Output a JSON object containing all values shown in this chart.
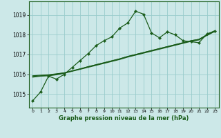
{
  "xlabel": "Graphe pression niveau de la mer (hPa)",
  "bg_color": "#cce8e8",
  "grid_color": "#99cccc",
  "line_color": "#1a5c1a",
  "x_ticks": [
    0,
    1,
    2,
    3,
    4,
    5,
    6,
    7,
    8,
    9,
    10,
    11,
    12,
    13,
    14,
    15,
    16,
    17,
    18,
    19,
    20,
    21,
    22,
    23
  ],
  "ylim": [
    1014.3,
    1019.7
  ],
  "yticks": [
    1015,
    1016,
    1017,
    1018,
    1019
  ],
  "series": {
    "main": [
      1014.65,
      1015.1,
      1015.9,
      1015.75,
      1016.0,
      1016.35,
      1016.7,
      1017.05,
      1017.45,
      1017.7,
      1017.9,
      1018.35,
      1018.6,
      1019.2,
      1019.05,
      1018.1,
      1017.85,
      1018.15,
      1018.0,
      1017.7,
      1017.65,
      1017.6,
      1018.05,
      1018.2
    ],
    "line_a": [
      1015.92,
      1015.95,
      1015.97,
      1016.02,
      1016.07,
      1016.17,
      1016.27,
      1016.38,
      1016.48,
      1016.58,
      1016.68,
      1016.78,
      1016.9,
      1017.0,
      1017.1,
      1017.2,
      1017.3,
      1017.4,
      1017.5,
      1017.6,
      1017.7,
      1017.77,
      1018.0,
      1018.2
    ],
    "line_b": [
      1015.88,
      1015.92,
      1015.95,
      1016.0,
      1016.07,
      1016.17,
      1016.27,
      1016.38,
      1016.48,
      1016.58,
      1016.68,
      1016.78,
      1016.9,
      1017.0,
      1017.1,
      1017.2,
      1017.3,
      1017.4,
      1017.5,
      1017.6,
      1017.7,
      1017.77,
      1018.0,
      1018.2
    ],
    "line_c": [
      1015.85,
      1015.9,
      1015.92,
      1015.97,
      1016.05,
      1016.15,
      1016.25,
      1016.35,
      1016.45,
      1016.55,
      1016.65,
      1016.75,
      1016.87,
      1016.97,
      1017.07,
      1017.17,
      1017.27,
      1017.37,
      1017.47,
      1017.57,
      1017.67,
      1017.74,
      1017.97,
      1018.17
    ]
  }
}
